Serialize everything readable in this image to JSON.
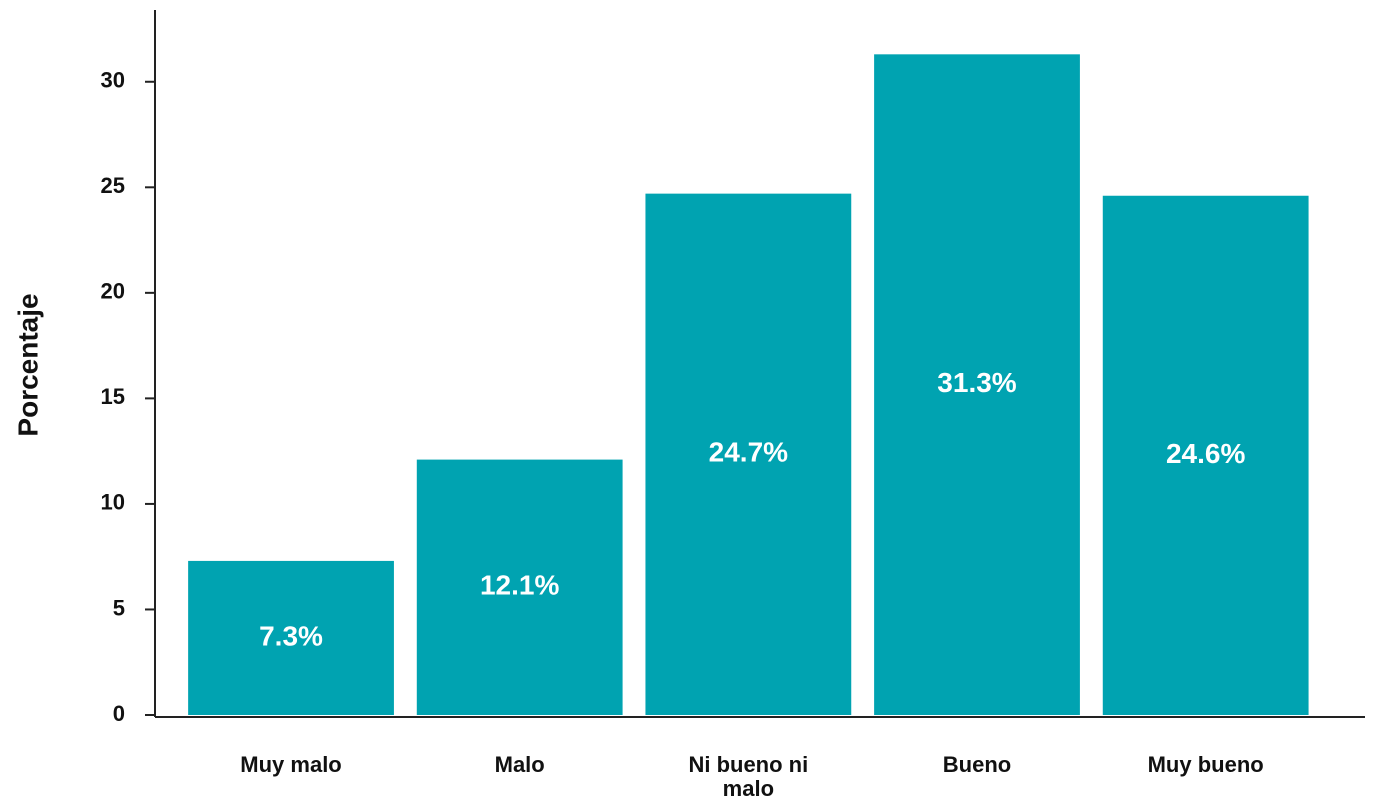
{
  "chart_data": {
    "type": "bar",
    "ylabel": "Porcentaje",
    "categories": [
      "Muy malo",
      "Malo",
      "Ni bueno ni malo",
      "Bueno",
      "Muy bueno"
    ],
    "values": [
      7.3,
      12.1,
      24.7,
      31.3,
      24.6
    ],
    "value_labels": [
      "7.3%",
      "12.1%",
      "24.7%",
      "31.3%",
      "24.6%"
    ],
    "color": "#00a3b1",
    "ylim": [
      0,
      33.4
    ],
    "yticks": [
      0,
      5,
      10,
      15,
      20,
      25,
      30
    ]
  }
}
